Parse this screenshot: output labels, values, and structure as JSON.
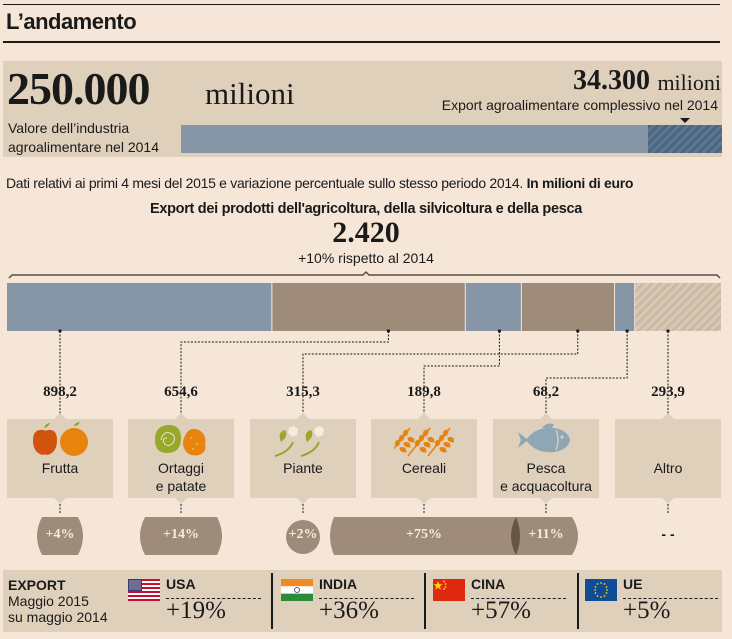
{
  "header": {
    "title": "L’andamento"
  },
  "industry": {
    "value": "250.000",
    "unit": "milioni",
    "caption_line1": "Valore dell’industria",
    "caption_line2": "agroalimentare nel 2014"
  },
  "export_total": {
    "value": "34.300",
    "unit": "milioni",
    "caption": "Export agroalimentare complessivo nel 2014",
    "share_of_industry": 0.1372
  },
  "subtitle": {
    "text": "Dati relativi ai primi 4 mesi del 2015 e variazione percentuale sullo stesso periodo 2014. ",
    "bold": "In milioni di euro"
  },
  "chart_data": {
    "type": "bar",
    "subtype": "stacked-horizontal",
    "title": "Export dei prodotti dell'agricoltura, della silvicoltura e della pesca",
    "total_label": "2.420",
    "total": 2420,
    "total_change_label": "+10% rispetto al 2014",
    "unit": "milioni di euro",
    "categories": [
      "Frutta",
      "Ortaggi e patate",
      "Piante",
      "Cereali",
      "Pesca e acquacoltura",
      "Altro"
    ],
    "values": [
      898.2,
      654.6,
      315.3,
      189.8,
      68.2,
      293.9
    ],
    "value_labels": [
      "898,2",
      "654,6",
      "315,3",
      "189,8",
      "68,2",
      "293,9"
    ],
    "stack_order": [
      "Frutta",
      "Ortaggi e patate",
      "Cereali",
      "Piante",
      "Pesca e acquacoltura",
      "Altro"
    ],
    "changes": [
      "+4%",
      "+14%",
      "+2%",
      "+75%",
      "+11%",
      "- -"
    ],
    "changes_numeric": [
      4,
      14,
      2,
      75,
      11,
      null
    ],
    "colors": {
      "blue": "#8796a6",
      "brown": "#9e8b7a",
      "hatch": "#d5c5b1"
    }
  },
  "categories": [
    {
      "label_line1": "Frutta",
      "label_line2": "",
      "icon": "fruit-icon"
    },
    {
      "label_line1": "Ortaggi",
      "label_line2": "e patate",
      "icon": "vegetables-icon"
    },
    {
      "label_line1": "Piante",
      "label_line2": "",
      "icon": "plants-icon"
    },
    {
      "label_line1": "Cereali",
      "label_line2": "",
      "icon": "wheat-icon"
    },
    {
      "label_line1": "Pesca",
      "label_line2": "e acquacoltura",
      "icon": "fish-icon"
    },
    {
      "label_line1": "Altro",
      "label_line2": "",
      "icon": ""
    }
  ],
  "export_may": {
    "label_bold": "EXPORT",
    "label_line2": "Maggio 2015",
    "label_line3": "su maggio 2014",
    "countries": [
      {
        "name": "USA",
        "value": "+19%",
        "flag": "us-flag-icon"
      },
      {
        "name": "INDIA",
        "value": "+36%",
        "flag": "india-flag-icon"
      },
      {
        "name": "CINA",
        "value": "+57%",
        "flag": "china-flag-icon"
      },
      {
        "name": "UE",
        "value": "+5%",
        "flag": "eu-flag-icon"
      }
    ]
  }
}
